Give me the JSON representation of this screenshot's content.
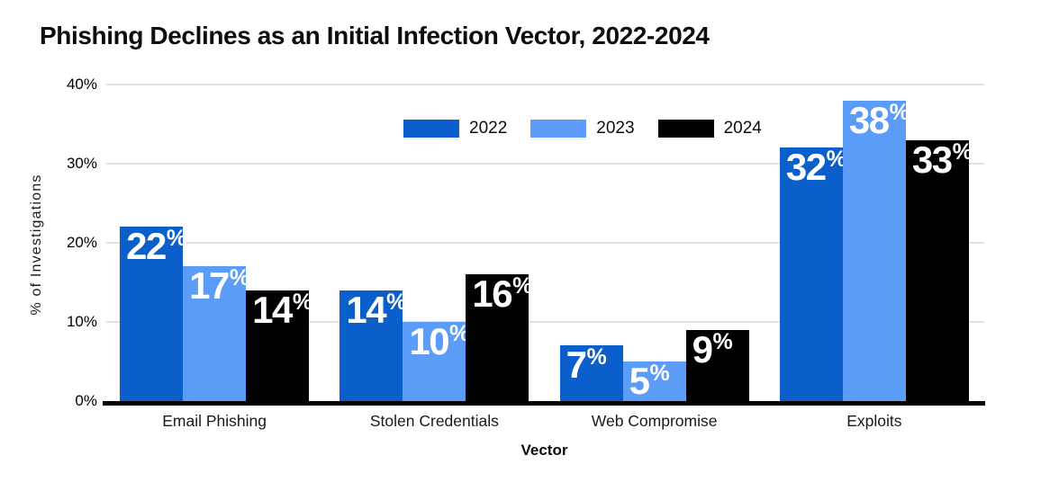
{
  "title": "Phishing Declines as an Initial Infection Vector, 2022-2024",
  "chart_data": {
    "type": "bar",
    "title": "Phishing Declines as an Initial Infection Vector, 2022-2024",
    "categories": [
      "Email Phishing",
      "Stolen Credentials",
      "Web Compromise",
      "Exploits"
    ],
    "series": [
      {
        "name": "2022",
        "color": "#0b5fca",
        "values": [
          22,
          14,
          7,
          32
        ]
      },
      {
        "name": "2023",
        "color": "#5a9cf8",
        "values": [
          17,
          10,
          5,
          38
        ]
      },
      {
        "name": "2024",
        "color": "#000000",
        "values": [
          14,
          16,
          9,
          33
        ]
      }
    ],
    "xlabel": "Vector",
    "ylabel": "% of Investigations",
    "ylim": [
      0,
      40
    ],
    "yticks": [
      "0%",
      "10%",
      "20%",
      "30%",
      "40%"
    ],
    "value_suffix": "%",
    "grid": true,
    "legend_position": "top-center",
    "bar_label_color": "#ffffff"
  },
  "colors": {
    "background": "#ffffff",
    "grid": "#e3e3e3",
    "axis_line": "#000000",
    "text": "#0d0d0d"
  }
}
